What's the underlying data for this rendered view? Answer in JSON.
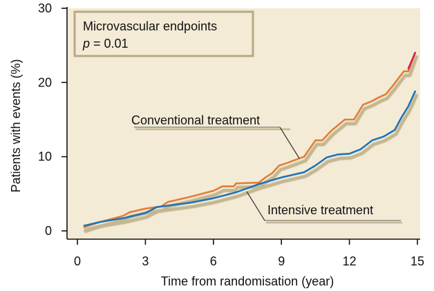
{
  "chart_data": {
    "type": "line",
    "xlabel": "Time from randomisation (year)",
    "ylabel": "Patients with events (%)",
    "xlim": [
      0,
      15
    ],
    "ylim": [
      0,
      30
    ],
    "x_ticks": [
      "0",
      "3",
      "6",
      "9",
      "12",
      "15"
    ],
    "y_ticks": [
      "0",
      "10",
      "20",
      "30"
    ],
    "grid": false,
    "legend_box": {
      "line1": "Microvascular endpoints",
      "p_symbol": "p",
      "p_rest": " = 0.01"
    },
    "colors": {
      "plot_background": "#f3ebd6",
      "conventional": "#e27d35",
      "intensive": "#1f73b7",
      "shadow": "#c4b690",
      "box_border": "#b8a883",
      "end_accent": "#d2234f"
    },
    "series": [
      {
        "name": "Conventional treatment",
        "x": [
          0.3,
          1.0,
          2.0,
          2.3,
          3.0,
          3.7,
          4.0,
          5.0,
          6.0,
          6.4,
          6.9,
          7.0,
          8.0,
          8.3,
          8.6,
          8.9,
          9.2,
          10.0,
          10.5,
          10.8,
          11.2,
          11.6,
          11.8,
          12.2,
          12.6,
          13.0,
          13.3,
          13.6,
          13.9,
          14.1,
          14.4,
          14.6,
          14.9
        ],
        "values": [
          0.5,
          1.2,
          2.0,
          2.5,
          3.0,
          3.3,
          3.9,
          4.6,
          5.4,
          6.0,
          6.0,
          6.4,
          6.5,
          7.2,
          7.8,
          8.8,
          9.1,
          10.0,
          12.2,
          12.2,
          13.5,
          14.5,
          15.0,
          15.0,
          17.0,
          17.5,
          18.0,
          18.4,
          19.5,
          20.3,
          21.5,
          21.5,
          24.0
        ]
      },
      {
        "name": "Intensive treatment",
        "x": [
          0.3,
          1.0,
          2.0,
          3.0,
          3.5,
          4.0,
          5.0,
          6.0,
          7.0,
          8.0,
          9.0,
          10.0,
          10.5,
          11.0,
          11.5,
          12.0,
          12.5,
          13.0,
          13.5,
          14.0,
          14.3,
          14.6,
          14.9
        ],
        "values": [
          0.7,
          1.2,
          1.7,
          2.4,
          3.2,
          3.4,
          3.8,
          4.4,
          5.2,
          6.3,
          7.2,
          7.9,
          8.8,
          9.9,
          10.3,
          10.4,
          11.0,
          12.2,
          12.7,
          13.6,
          15.3,
          16.8,
          18.8
        ]
      }
    ],
    "annotations": [
      {
        "text": "Conventional treatment",
        "series": "Conventional treatment"
      },
      {
        "text": "Intensive treatment",
        "series": "Intensive treatment"
      }
    ]
  }
}
